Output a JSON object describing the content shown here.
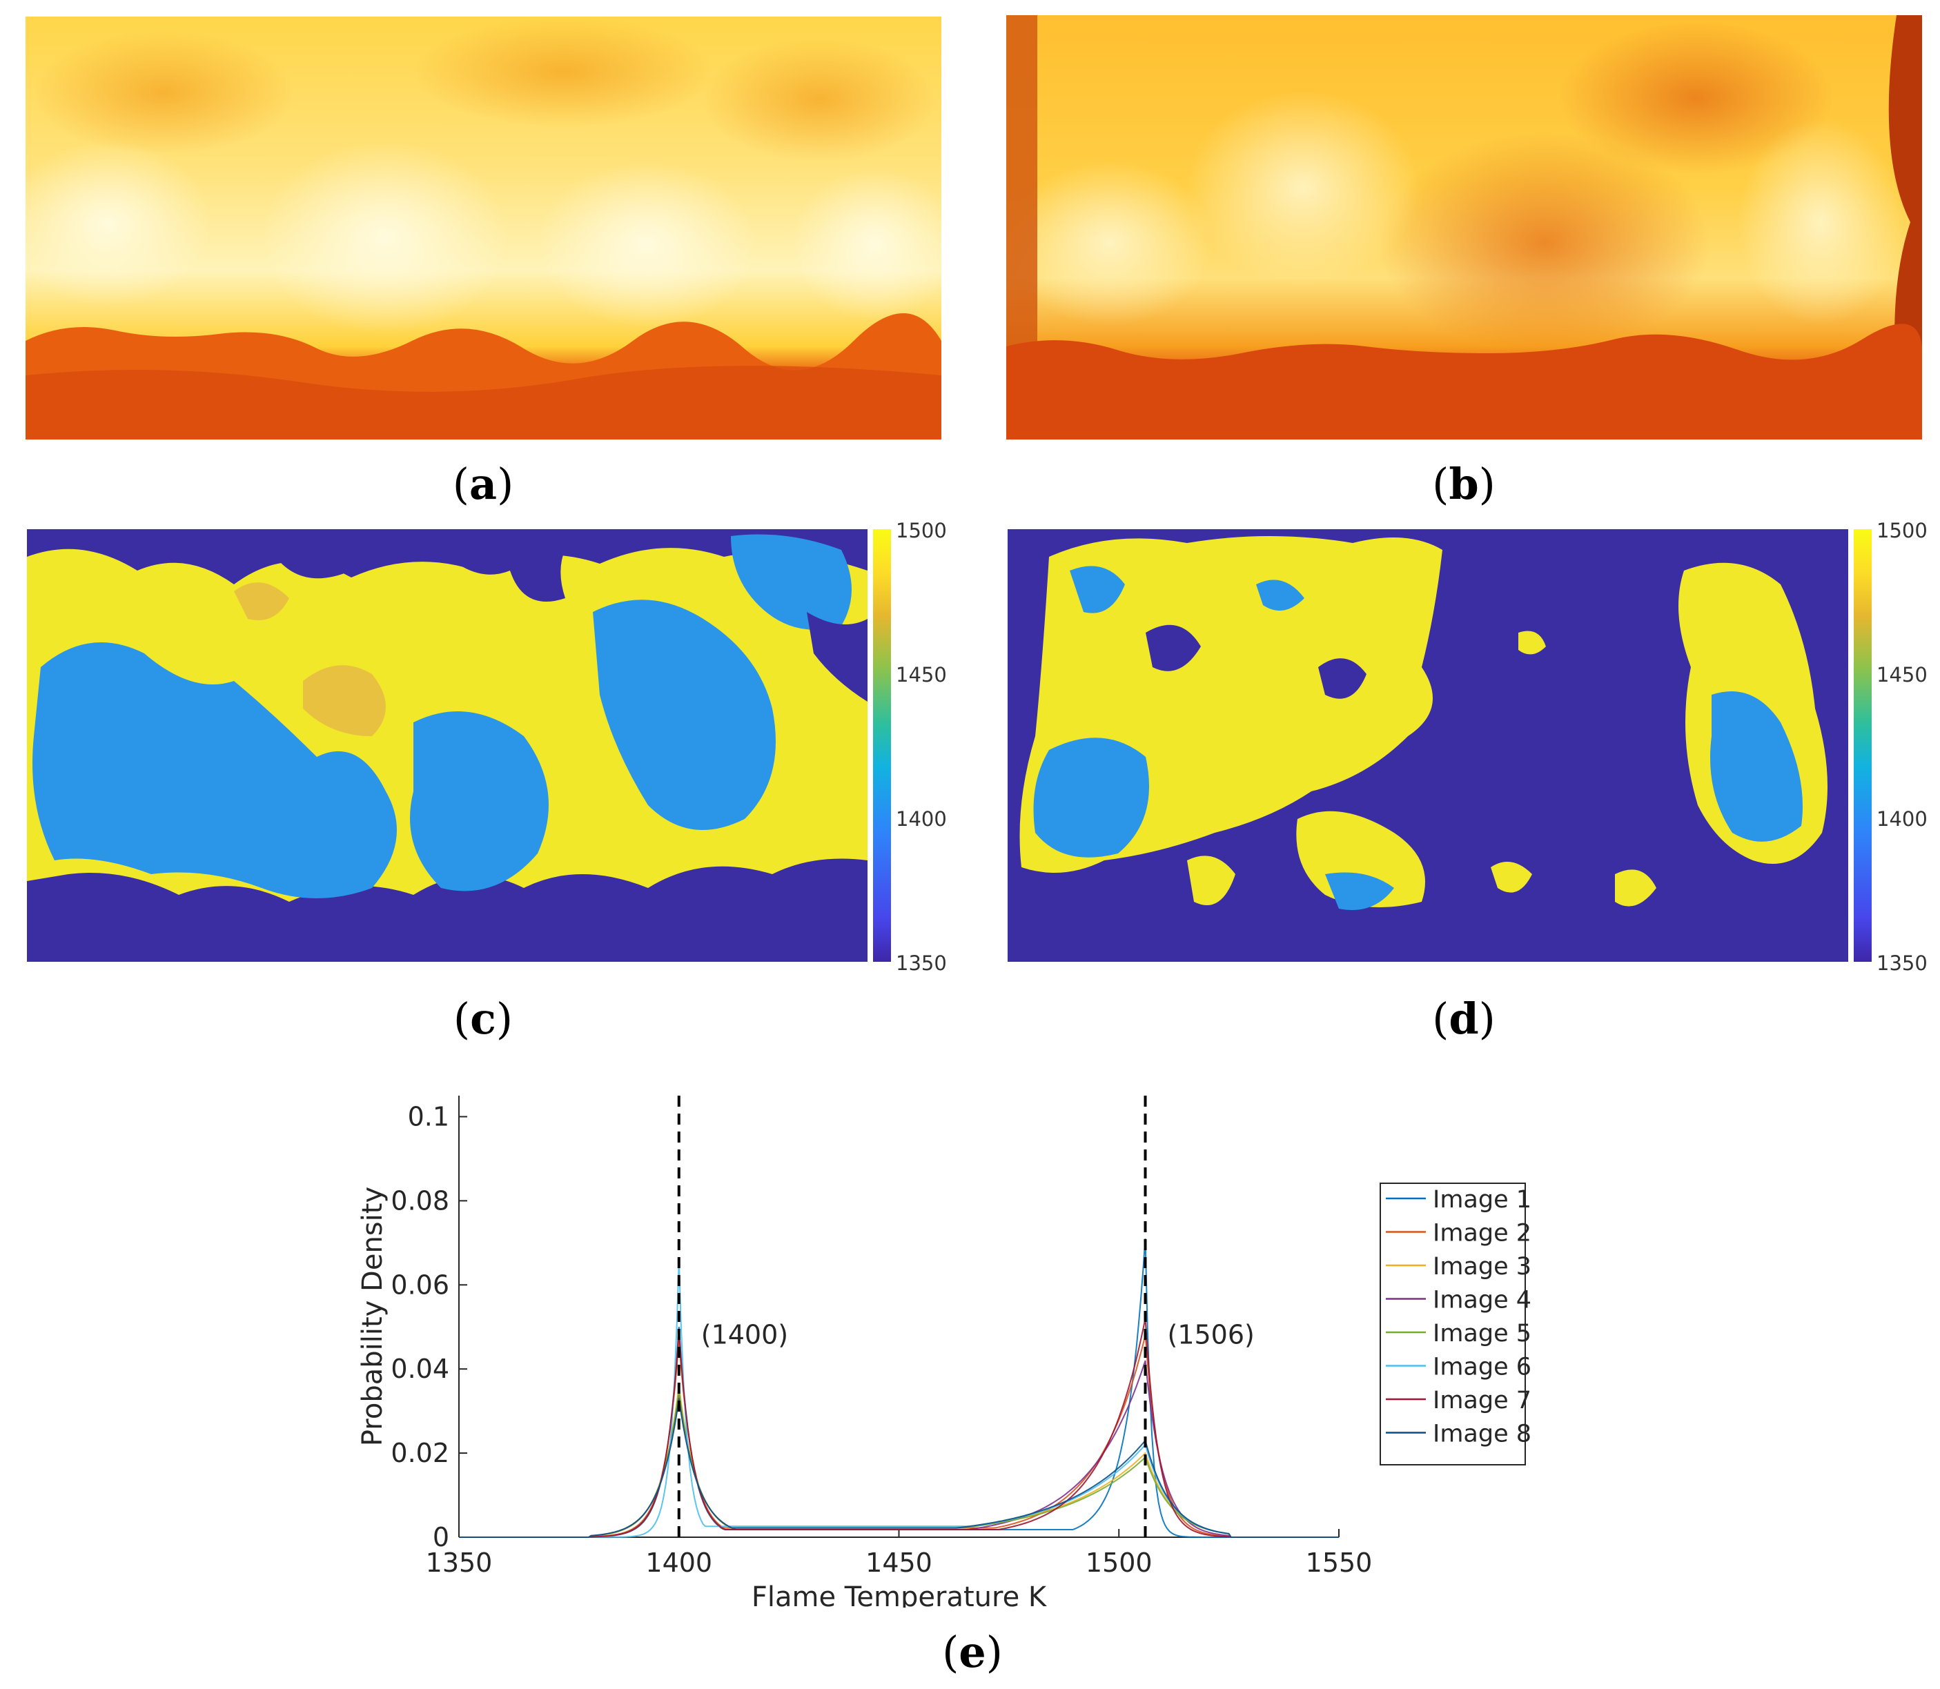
{
  "captions": {
    "a": "a",
    "b": "b",
    "c": "c",
    "d": "d",
    "e": "e"
  },
  "colorbar_c": {
    "max": "1500",
    "t1450": "1450",
    "t1400": "1400",
    "min": "1350"
  },
  "colorbar_d": {
    "max": "1500",
    "t1450": "1450",
    "t1400": "1400",
    "min": "1350"
  },
  "colors": {
    "flame_bright": "#fff7b0",
    "flame_mid": "#ffd24a",
    "flame_orange": "#f08a1e",
    "fuel_bed": "#e85a10",
    "map_low": "#3b2ea3",
    "map_mid": "#2b96e8",
    "map_high": "#f2e82a"
  },
  "chart_data": {
    "type": "line",
    "xlabel": "Flame Temperature K",
    "ylabel": "Probability Density",
    "xlim": [
      1350,
      1550
    ],
    "ylim": [
      0,
      0.105
    ],
    "xticks": [
      "1350",
      "1400",
      "1450",
      "1500",
      "1550"
    ],
    "yticks": [
      "0",
      "0.02",
      "0.04",
      "0.06",
      "0.08",
      "0.1"
    ],
    "vlines": [
      1400,
      1506
    ],
    "annotations": [
      "(1400)",
      "(1506)"
    ],
    "legend_position": "right",
    "grid": false,
    "series": [
      {
        "name": "Image 1",
        "color": "#0072bd",
        "peak1": 0.05,
        "peak2": 0.071
      },
      {
        "name": "Image 2",
        "color": "#d95319",
        "peak1": 0.047,
        "peak2": 0.048
      },
      {
        "name": "Image 3",
        "color": "#edb120",
        "peak1": 0.036,
        "peak2": 0.02
      },
      {
        "name": "Image 4",
        "color": "#7e2f8e",
        "peak1": 0.034,
        "peak2": 0.042
      },
      {
        "name": "Image 5",
        "color": "#77ac30",
        "peak1": 0.035,
        "peak2": 0.019
      },
      {
        "name": "Image 6",
        "color": "#4dbeee",
        "peak1": 0.066,
        "peak2": 0.022
      },
      {
        "name": "Image 7",
        "color": "#a2142f",
        "peak1": 0.049,
        "peak2": 0.052
      },
      {
        "name": "Image 8",
        "color": "#0b4f8a",
        "peak1": 0.033,
        "peak2": 0.023
      }
    ]
  }
}
